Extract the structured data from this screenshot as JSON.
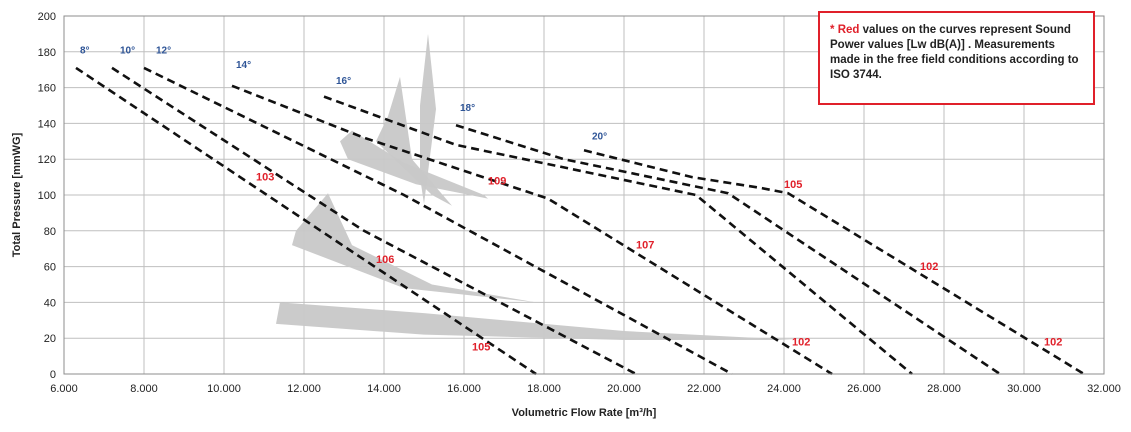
{
  "chart_data": {
    "type": "line",
    "xlabel": "Volumetric Flow Rate [m³/h]",
    "ylabel": "Total Pressure [mmWG]",
    "xlim": [
      6000,
      32000
    ],
    "ylim": [
      0,
      200
    ],
    "x_ticks": [
      "6.000",
      "8.000",
      "10.000",
      "12.000",
      "14.000",
      "16.000",
      "18.000",
      "20.000",
      "22.000",
      "24.000",
      "26.000",
      "28.000",
      "30.000",
      "32.000"
    ],
    "y_ticks": [
      "0",
      "20",
      "40",
      "60",
      "80",
      "100",
      "120",
      "140",
      "160",
      "180",
      "200"
    ],
    "grid": true,
    "colors": {
      "curve": "#111111",
      "angle_label": "#2f5597",
      "sound_label": "#e0202a",
      "band": "#c8c8c8",
      "grid": "#bfbfbf",
      "note_border": "#e0202a"
    },
    "series": [
      {
        "name": "8°",
        "x": [
          6300,
          17800
        ],
        "y": [
          171,
          0
        ]
      },
      {
        "name": "10°",
        "x": [
          7200,
          13500,
          20300
        ],
        "y": [
          171,
          80,
          0
        ]
      },
      {
        "name": "12°",
        "x": [
          8000,
          14500,
          22700
        ],
        "y": [
          171,
          100,
          0
        ]
      },
      {
        "name": "14°",
        "x": [
          10200,
          13500,
          18100,
          25200
        ],
        "y": [
          161,
          132,
          98,
          0
        ]
      },
      {
        "name": "16°",
        "x": [
          12500,
          15800,
          21800,
          27200
        ],
        "y": [
          155,
          128,
          100,
          0
        ]
      },
      {
        "name": "18°",
        "x": [
          15800,
          18500,
          22600,
          29400
        ],
        "y": [
          139,
          120,
          101,
          0
        ]
      },
      {
        "name": "20°",
        "x": [
          19000,
          21700,
          23400,
          24100,
          31500
        ],
        "y": [
          125,
          110,
          104,
          101,
          0
        ]
      }
    ],
    "sound_power_labels": [
      {
        "text": "103",
        "x": 10800,
        "y": 108
      },
      {
        "text": "109",
        "x": 16600,
        "y": 106
      },
      {
        "text": "107",
        "x": 20300,
        "y": 70
      },
      {
        "text": "106",
        "x": 13800,
        "y": 62
      },
      {
        "text": "105",
        "x": 16200,
        "y": 13
      },
      {
        "text": "105",
        "x": 24000,
        "y": 104
      },
      {
        "text": "102",
        "x": 24200,
        "y": 16
      },
      {
        "text": "102",
        "x": 27400,
        "y": 58
      },
      {
        "text": "102",
        "x": 30500,
        "y": 16
      }
    ],
    "angle_labels": [
      {
        "text": "8°",
        "x": 6400,
        "y": 179
      },
      {
        "text": "10°",
        "x": 7400,
        "y": 179
      },
      {
        "text": "12°",
        "x": 8300,
        "y": 179
      },
      {
        "text": "14°",
        "x": 10300,
        "y": 171
      },
      {
        "text": "16°",
        "x": 12800,
        "y": 162
      },
      {
        "text": "18°",
        "x": 15900,
        "y": 147
      },
      {
        "text": "20°",
        "x": 19200,
        "y": 131
      }
    ],
    "efficiency_bands": [
      {
        "polygon": [
          [
            11400,
            40
          ],
          [
            11300,
            28
          ],
          [
            15000,
            22
          ],
          [
            20000,
            19
          ],
          [
            24300,
            19
          ],
          [
            20000,
            24
          ],
          [
            15000,
            34
          ]
        ]
      },
      {
        "polygon": [
          [
            11800,
            80
          ],
          [
            11700,
            72
          ],
          [
            14500,
            48
          ],
          [
            17800,
            40
          ],
          [
            15200,
            50
          ],
          [
            13200,
            72
          ],
          [
            12600,
            101
          ]
        ]
      },
      {
        "polygon": [
          [
            13100,
            120
          ],
          [
            12900,
            130
          ],
          [
            13200,
            136
          ],
          [
            14500,
            118
          ],
          [
            16500,
            100
          ],
          [
            16600,
            98
          ],
          [
            14800,
            106
          ]
        ]
      },
      {
        "polygon": [
          [
            13800,
            130
          ],
          [
            14100,
            144
          ],
          [
            14400,
            166
          ],
          [
            14700,
            120
          ],
          [
            15700,
            94
          ],
          [
            15200,
            100
          ]
        ]
      },
      {
        "polygon": [
          [
            14900,
            150
          ],
          [
            15100,
            190
          ],
          [
            15300,
            148
          ],
          [
            15000,
            95
          ],
          [
            14900,
            110
          ]
        ]
      }
    ],
    "annotation": {
      "star": "*",
      "red_word": "Red",
      "rest": " values on the curves represent Sound Power values [Lw dB(A)] . Measurements made in the free field conditions according to ISO 3744."
    }
  }
}
